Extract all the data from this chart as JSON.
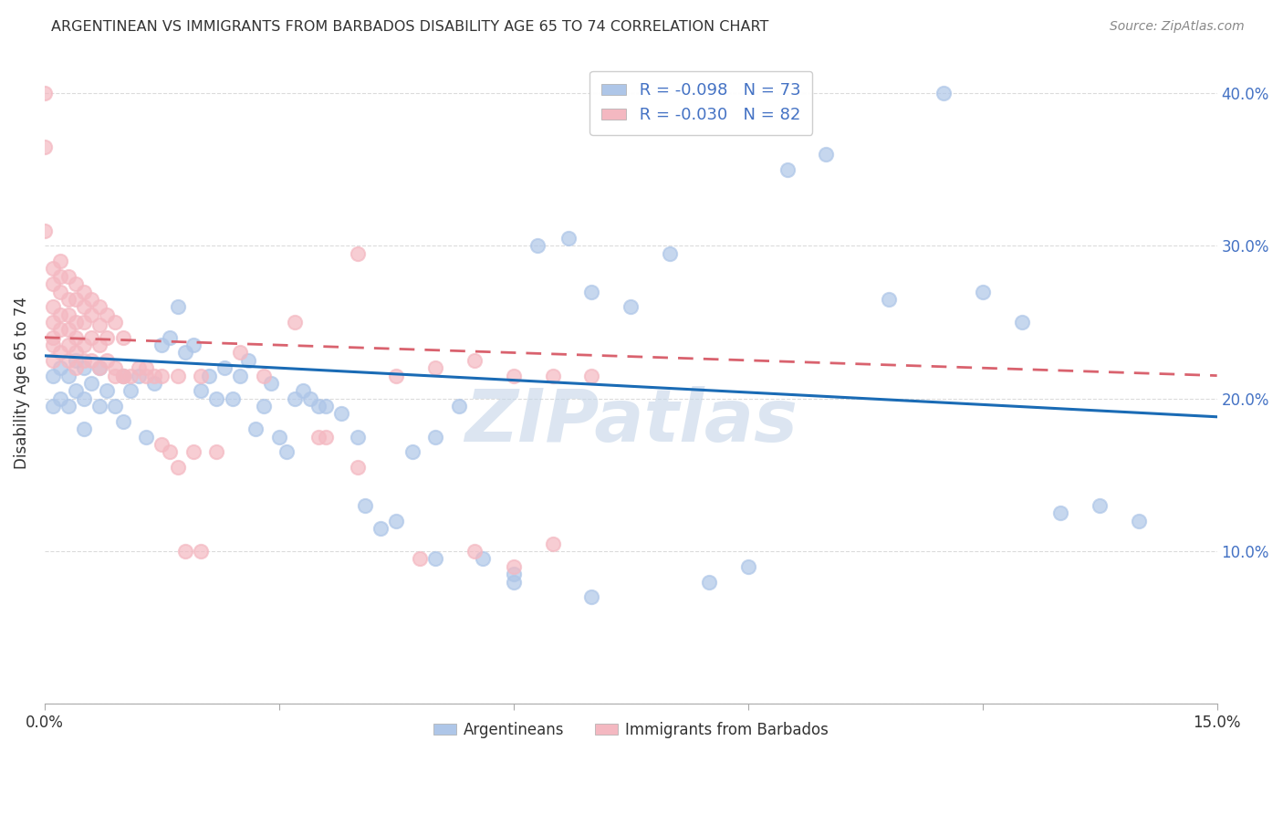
{
  "title": "ARGENTINEAN VS IMMIGRANTS FROM BARBADOS DISABILITY AGE 65 TO 74 CORRELATION CHART",
  "source": "Source: ZipAtlas.com",
  "ylabel": "Disability Age 65 to 74",
  "x_min": 0.0,
  "x_max": 0.15,
  "y_min": 0.0,
  "y_max": 0.42,
  "x_ticks": [
    0.0,
    0.03,
    0.06,
    0.09,
    0.12,
    0.15
  ],
  "x_tick_labels": [
    "0.0%",
    "",
    "",
    "",
    "",
    "15.0%"
  ],
  "y_ticks_right": [
    0.0,
    0.1,
    0.2,
    0.3,
    0.4
  ],
  "y_tick_labels_right": [
    "",
    "10.0%",
    "20.0%",
    "30.0%",
    "40.0%"
  ],
  "legend_entries": [
    {
      "color": "#aec6e8",
      "R": "-0.098",
      "N": "73"
    },
    {
      "color": "#f4b8c1",
      "R": "-0.030",
      "N": "82"
    }
  ],
  "blue_scatter_x": [
    0.001,
    0.001,
    0.002,
    0.002,
    0.003,
    0.003,
    0.004,
    0.004,
    0.005,
    0.005,
    0.005,
    0.006,
    0.007,
    0.007,
    0.008,
    0.009,
    0.01,
    0.01,
    0.011,
    0.012,
    0.013,
    0.014,
    0.015,
    0.016,
    0.017,
    0.018,
    0.019,
    0.02,
    0.021,
    0.022,
    0.023,
    0.024,
    0.025,
    0.026,
    0.027,
    0.028,
    0.029,
    0.03,
    0.031,
    0.032,
    0.033,
    0.034,
    0.035,
    0.036,
    0.038,
    0.04,
    0.041,
    0.043,
    0.045,
    0.047,
    0.05,
    0.053,
    0.056,
    0.06,
    0.063,
    0.067,
    0.07,
    0.075,
    0.08,
    0.085,
    0.09,
    0.095,
    0.1,
    0.108,
    0.115,
    0.12,
    0.125,
    0.13,
    0.135,
    0.14,
    0.05,
    0.06,
    0.07
  ],
  "blue_scatter_y": [
    0.215,
    0.195,
    0.22,
    0.2,
    0.215,
    0.195,
    0.225,
    0.205,
    0.22,
    0.2,
    0.18,
    0.21,
    0.22,
    0.195,
    0.205,
    0.195,
    0.215,
    0.185,
    0.205,
    0.215,
    0.175,
    0.21,
    0.235,
    0.24,
    0.26,
    0.23,
    0.235,
    0.205,
    0.215,
    0.2,
    0.22,
    0.2,
    0.215,
    0.225,
    0.18,
    0.195,
    0.21,
    0.175,
    0.165,
    0.2,
    0.205,
    0.2,
    0.195,
    0.195,
    0.19,
    0.175,
    0.13,
    0.115,
    0.12,
    0.165,
    0.175,
    0.195,
    0.095,
    0.085,
    0.3,
    0.305,
    0.27,
    0.26,
    0.295,
    0.08,
    0.09,
    0.35,
    0.36,
    0.265,
    0.4,
    0.27,
    0.25,
    0.125,
    0.13,
    0.12,
    0.095,
    0.08,
    0.07
  ],
  "pink_scatter_x": [
    0.0,
    0.0,
    0.0,
    0.001,
    0.001,
    0.001,
    0.001,
    0.001,
    0.001,
    0.001,
    0.002,
    0.002,
    0.002,
    0.002,
    0.002,
    0.002,
    0.003,
    0.003,
    0.003,
    0.003,
    0.003,
    0.003,
    0.004,
    0.004,
    0.004,
    0.004,
    0.004,
    0.004,
    0.005,
    0.005,
    0.005,
    0.005,
    0.005,
    0.006,
    0.006,
    0.006,
    0.006,
    0.007,
    0.007,
    0.007,
    0.007,
    0.008,
    0.008,
    0.008,
    0.009,
    0.009,
    0.01,
    0.01,
    0.011,
    0.012,
    0.013,
    0.014,
    0.015,
    0.016,
    0.017,
    0.018,
    0.019,
    0.02,
    0.022,
    0.025,
    0.028,
    0.032,
    0.036,
    0.04,
    0.045,
    0.05,
    0.055,
    0.06,
    0.065,
    0.07,
    0.035,
    0.04,
    0.048,
    0.055,
    0.06,
    0.065,
    0.009,
    0.01,
    0.013,
    0.015,
    0.017,
    0.02
  ],
  "pink_scatter_y": [
    0.4,
    0.365,
    0.31,
    0.285,
    0.275,
    0.26,
    0.25,
    0.24,
    0.235,
    0.225,
    0.29,
    0.28,
    0.27,
    0.255,
    0.245,
    0.23,
    0.28,
    0.265,
    0.255,
    0.245,
    0.235,
    0.225,
    0.275,
    0.265,
    0.25,
    0.24,
    0.23,
    0.22,
    0.27,
    0.26,
    0.25,
    0.235,
    0.225,
    0.265,
    0.255,
    0.24,
    0.225,
    0.26,
    0.248,
    0.235,
    0.22,
    0.255,
    0.24,
    0.225,
    0.25,
    0.22,
    0.24,
    0.215,
    0.215,
    0.22,
    0.22,
    0.215,
    0.17,
    0.165,
    0.155,
    0.1,
    0.165,
    0.1,
    0.165,
    0.23,
    0.215,
    0.25,
    0.175,
    0.295,
    0.215,
    0.22,
    0.225,
    0.215,
    0.215,
    0.215,
    0.175,
    0.155,
    0.095,
    0.1,
    0.09,
    0.105,
    0.215,
    0.215,
    0.215,
    0.215,
    0.215,
    0.215
  ],
  "blue_line_color": "#1a6bb5",
  "pink_line_color": "#d9626e",
  "scatter_blue_color": "#aec6e8",
  "scatter_pink_color": "#f4b8c1",
  "background_color": "#ffffff",
  "grid_color": "#cccccc",
  "watermark_text": "ZIPatlas",
  "watermark_color": "#c5d5e8"
}
